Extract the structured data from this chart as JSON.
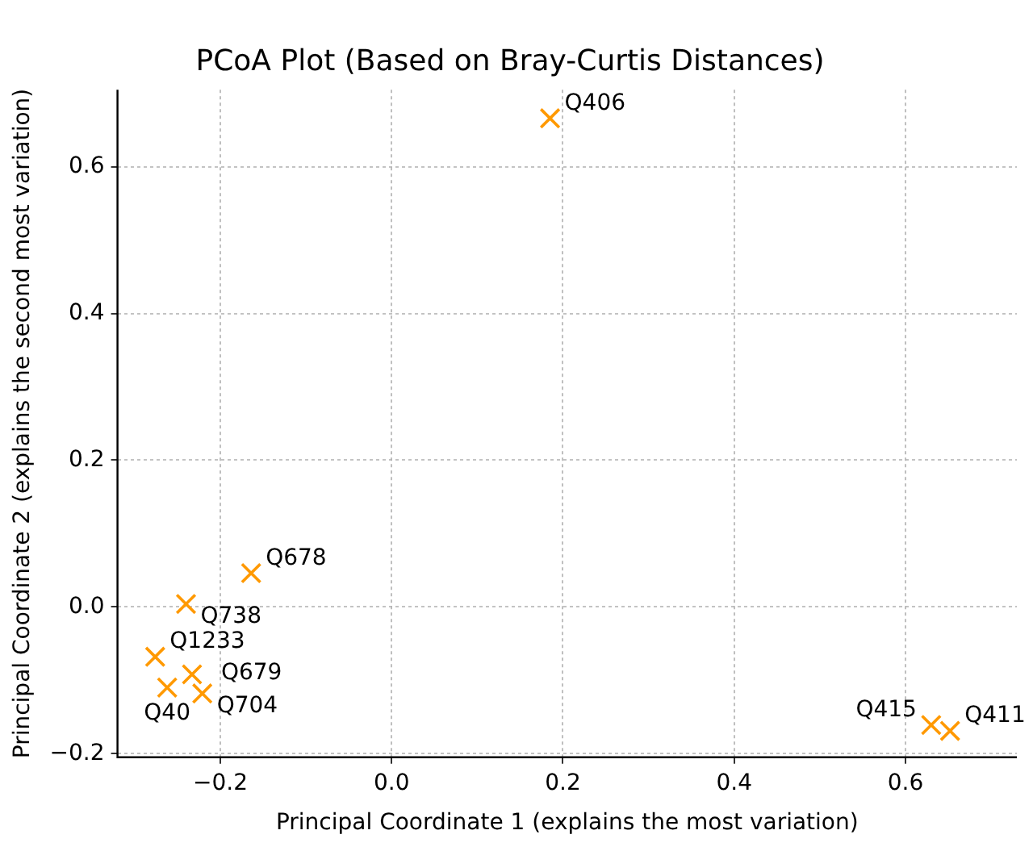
{
  "chart_data": {
    "type": "scatter",
    "title": "PCoA Plot (Based on Bray-Curtis Distances)",
    "xlabel": "Principal Coordinate 1 (explains the most variation)",
    "ylabel": "Principal Coordinate 2 (explains the second most variation)",
    "series": [
      {
        "color": "#ff9900",
        "x": [
          0.185,
          -0.164,
          -0.24,
          -0.276,
          -0.233,
          -0.262,
          -0.221,
          0.63,
          0.652
        ],
        "values": [
          0.666,
          0.046,
          0.004,
          -0.068,
          -0.092,
          -0.11,
          -0.118,
          -0.161,
          -0.169
        ]
      }
    ],
    "annotations": [
      {
        "text": "Q406",
        "x": 0.185,
        "y": 0.666
      },
      {
        "text": "Q678",
        "x": -0.164,
        "y": 0.046
      },
      {
        "text": "Q738",
        "x": -0.24,
        "y": 0.004
      },
      {
        "text": "Q1233",
        "x": -0.276,
        "y": -0.068
      },
      {
        "text": "Q679",
        "x": -0.233,
        "y": -0.092
      },
      {
        "text": "Q40",
        "x": -0.262,
        "y": -0.11
      },
      {
        "text": "Q704",
        "x": -0.221,
        "y": -0.118
      },
      {
        "text": "Q415",
        "x": 0.63,
        "y": -0.161
      },
      {
        "text": "Q411",
        "x": 0.652,
        "y": -0.169
      }
    ],
    "xlim": [
      -0.32,
      0.73
    ],
    "ylim": [
      -0.205,
      0.705
    ],
    "xticks": [
      {
        "value": -0.2,
        "label": "−0.2"
      },
      {
        "value": 0,
        "label": "0.0"
      },
      0.2,
      0.4,
      0.6
    ],
    "yticks": [
      {
        "value": -0.2,
        "label": "−0.2"
      },
      {
        "value": 0,
        "label": "0.0"
      },
      0.2,
      0.4,
      0.6
    ],
    "grid": true,
    "marker": "cross",
    "legend": false
  }
}
